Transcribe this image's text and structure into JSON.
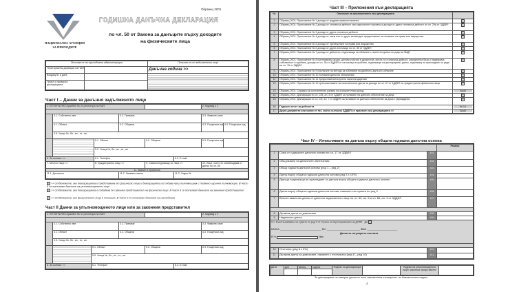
{
  "page1": {
    "form_code": "Образец 2001",
    "agency": "НАЦИОНАЛНА АГЕНЦИЯ ЗА ПРИХОДИТЕ",
    "title": "ГОДИШНА ДАНЪЧНА ДЕКЛАРАЦИЯ",
    "subtitle_1": "по чл. 50 от Закона за данъците върху доходите",
    "subtitle_2": "на физическите лица",
    "admin_header": "Попълва се от приходната администрация",
    "filer_header": "Попълва се от задълженото лице",
    "admin_rows": [
      "Териториална дирекция на НАП",
      "Входящ № и дата",
      "Приел и проверил декларацията"
    ],
    "tax_year_label": "Данъчна година >>",
    "part1_title": "Част I – Данни за данъчно задълженото лице",
    "part1_row1": "1. ЕГН/ЛНЧ/ЛН/Служебен № от регистъра на НАП",
    "part1_kod": "2. Код/вид ≥ 1",
    "part1_fields": [
      "3.1. Собствено име",
      "3.2. Презиме",
      "3.3. Фамилно име",
      "4.1. Област",
      "4.2. Община",
      "4.3. Пощенски код",
      "4.4. Пощенски код",
      "4.5. Улица №, бл., вх., ет., ап.",
      "5.1. Област",
      "5.2. Община",
      "5.3. Пощенски код",
      "5.5. Улица №, бл., вх., ет., ап.",
      "6. За контакт >>",
      "6.1. Телефон",
      "6.2. E-mail",
      "7. Местно лице >>",
      "8. Чуждестранно лице >>",
      "9. Самоосигуряващо се лице >>",
      "10. Лице, което се освобождава от данък по чл. 85",
      "11. Звание и професия",
      "11.1. Длъжност",
      "11.2. Заемано място",
      "11.3. Отдел №"
    ],
    "notes": [
      ">> Отбележете, ако декларацията е представена от физическо лице и декларацията се подава чрез пълномощник с писмено изрично пълномощно. В Част II се попълват данните на упълномощеното лице",
      ">> Отбележете, ако декларацията е подадена от законен представител на физическо лице. В Част II се попълват данните на законния представител",
      ">> Отбележете, ако физическото лице е починало. В Част II се попълват данните на наследника"
    ],
    "part2_title": "Част II Данни за упълномощеното лице или за законния представител",
    "part2_row1": "1. ЕГН/ЛНЧ/ЛН/Служебен № от регистъра на НАП",
    "part2_kod": "2. Код/вид ≥ 1"
  },
  "page2": {
    "part3_title": "Част III – Приложения към декларацията",
    "part3_col_no": "№",
    "part3_col_desc": "Описание на приложенията към декларацията",
    "part3_rows": [
      {
        "no": "1",
        "text": "Образец 2001: Приложение № 1 доходи от трудови правоотношения"
      },
      {
        "no": "2",
        "text": "Образец 2001: Приложение № 2 доходи от стопанска дейност като едноличен търговец и доходи от друга стопанска дейност по чл. 29а от ЗДДФЛ"
      },
      {
        "no": "3",
        "text": "Образец 2001: Приложение № 3 доходи от друга стопанска дейност"
      },
      {
        "no": "4",
        "text": "Образец 2001: Приложение № 4 доходи от наем или от друго възмездно предоставяне за ползване на права или имущество"
      },
      {
        "no": "5",
        "text": "Образец 2001: Приложение № 5 доходи от прехвърляне на права или имущество"
      },
      {
        "no": "6",
        "text": "Образец 2001: Приложение № 6 доходи от други източници по чл. 35 от ЗДДФЛ"
      },
      {
        "no": "7",
        "text": "Образец 2001: Приложение № 7 доходи от дейности, подлежащи на облагане с патентен данък по реда на ЗМДТ"
      },
      {
        "no": "8",
        "text": "Образец 2001: Приложение № 8 притежавани акции, дялови участия в дружества, места на стопанска дейност, определена база и недвижима собственост в чужбина, доходи по чл. 38 от ЗДДФЛ от източници в чужбина, подлежащи на деклариране, данък, подлежащ на приспадане по реда на чл. 76 от ЗДДФЛ"
      },
      {
        "no": "9",
        "text": "Образец 2001: Приложение № 9 прилагане на метода за избягване на двойното данъчно облагане"
      },
      {
        "no": "10",
        "text": "Образец 2001: Приложение № 10 ползвани данъчни облекчения"
      },
      {
        "no": "11",
        "text": "Образец 2001: Приложение № 11 предоставени/получени парични дарения"
      },
      {
        "no": "12",
        "text": "Образец 2001: Приложение № 12 преизчисляване на окончателния данък за доходи по чл. 37 от ЗДДФЛ на чуждестранни физически лица"
      },
      {
        "no": "13",
        "text": "Образец 2001: Справка за окончателния размер на осигурителния доход",
        "extra": "Брой"
      },
      {
        "no": "14",
        "text": "Образец 2001: Декларация по чл. 22в, ал. 8 от ЗДДФЛ за ползване на данъчно облекчение за деца"
      },
      {
        "no": "15",
        "text": "Образец 2001: Декларация по чл. 22г, ал. 7 от ЗДДФЛ за ползване на данъчно облекчение за деца с увреждания"
      },
      {
        "no": "16",
        "text": "Годишен отчет за дейността",
        "extra": "№ 16"
      },
      {
        "no": "17",
        "text": "Други документи или копия от тях, които съгласно ЗДДФЛ се прилагат към декларацията >>",
        "extra": "Брой"
      }
    ],
    "part4_title": "Част IV – Изчисляване на данъка върху общата годишна данъчна основа",
    "part4_col_size": "Размер",
    "part4_rows": [
      {
        "no": "1",
        "text": "Сума от годишните данъчни основи по чл. 17 от ЗДДФЛ",
        "code": "401"
      },
      {
        "no": "2",
        "text": "Общ размер на данъчните облекчения",
        "code": "402"
      },
      {
        "no": "3",
        "text": "Обща годишна данъчна основа (ред 1 – ред 2)",
        "code": "403"
      },
      {
        "no": "4",
        "text": "Данък върху общата годишна данъчна основа (ред 3 x 10%)",
        "code": "404"
      },
      {
        "no": "5",
        "text": "Данъци подлежащи на приспадане от данъка върху общата годишна данъчна основа",
        "code": "405"
      },
      {
        "no": "6",
        "text": "Данък върху общата годишна данъчна основа, намален със сумата по ред 5",
        "code": "406"
      },
      {
        "no": "7",
        "text": "Внесен авансово данък от данъчно задълженото лице по чл. 62, ал. 6 и чл. 66, ал. 3 от ЗДДФЛ",
        "code": "407"
      },
      {
        "no": "8",
        "text": "Дължим данък за довнасяне",
        "code": "408"
      },
      {
        "no": "9",
        "text": "Надвнесен данък",
        "code": "409"
      },
      {
        "no": "10",
        "text": "Отстъпка (ред 8 x 5%)",
        "code": "410"
      },
      {
        "no": "11",
        "text": "Дължим данък за довнасяне, намален с отстъпката (ред 8 – ред 10)",
        "code": "411"
      }
    ],
    "refund_label": "9.1. Възстановяване на сумата по ред 9 от страна на териториалната на ДОПК",
    "refund_yes": "Да",
    "bank_labels": [
      "БАНКА",
      "BIC",
      "IBAN"
    ],
    "account_holder": "Данни за титуляра на сметката",
    "egn_label": "ЕГН",
    "name_label": "Име",
    "sig_labels": [
      "Дата",
      "ден",
      "месец",
      "година",
      "Подпис на декларатора",
      "Подпис на упълномощеното лице/ законния представител"
    ],
    "footer": "За деклариране на неверни данни се носи наказателна отговорност по Наказателния кодекс.",
    "page_number": "2"
  }
}
